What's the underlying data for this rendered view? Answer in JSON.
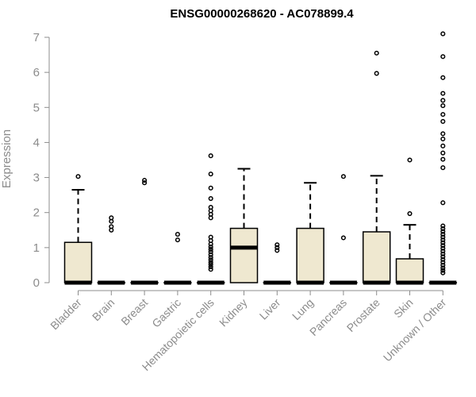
{
  "chart_data": {
    "type": "boxplot",
    "title": "ENSG00000268620 - AC078899.4",
    "xlabel": "",
    "ylabel": "Expression",
    "ylim": [
      0,
      7
    ],
    "yticks": [
      0,
      1,
      2,
      3,
      4,
      5,
      6,
      7
    ],
    "box_color": "#efe8d0",
    "categories": [
      "Bladder",
      "Brain",
      "Breast",
      "Gastric",
      "Hematopoietic cells",
      "Kidney",
      "Liver",
      "Lung",
      "Pancreas",
      "Prostate",
      "Skin",
      "Unknown / Other"
    ],
    "boxes": [
      {
        "q1": 0,
        "median": 0,
        "q3": 1.15,
        "whisker_low": 0,
        "whisker_high": 2.65,
        "outliers": [
          3.03
        ]
      },
      {
        "q1": 0,
        "median": 0,
        "q3": 0,
        "whisker_low": 0,
        "whisker_high": 0,
        "outliers": [
          1.5,
          1.6,
          1.75,
          1.85
        ]
      },
      {
        "q1": 0,
        "median": 0,
        "q3": 0,
        "whisker_low": 0,
        "whisker_high": 0,
        "outliers": [
          2.85,
          2.92
        ]
      },
      {
        "q1": 0,
        "median": 0,
        "q3": 0,
        "whisker_low": 0,
        "whisker_high": 0,
        "outliers": [
          1.22,
          1.38
        ]
      },
      {
        "q1": 0,
        "median": 0,
        "q3": 0,
        "whisker_low": 0,
        "whisker_high": 0,
        "outliers": [
          0.38,
          0.45,
          0.52,
          0.58,
          0.65,
          0.72,
          0.8,
          0.88,
          0.95,
          1.02,
          1.1,
          1.2,
          1.3,
          1.85,
          1.95,
          2.05,
          2.15,
          2.4,
          2.7,
          3.1,
          3.62
        ]
      },
      {
        "q1": 0,
        "median": 1.0,
        "q3": 1.55,
        "whisker_low": 0,
        "whisker_high": 3.25,
        "outliers": []
      },
      {
        "q1": 0,
        "median": 0,
        "q3": 0,
        "whisker_low": 0,
        "whisker_high": 0,
        "outliers": [
          0.92,
          1.0,
          1.08
        ]
      },
      {
        "q1": 0,
        "median": 0,
        "q3": 1.55,
        "whisker_low": 0,
        "whisker_high": 2.85,
        "outliers": []
      },
      {
        "q1": 0,
        "median": 0,
        "q3": 0,
        "whisker_low": 0,
        "whisker_high": 0,
        "outliers": [
          1.28,
          3.03
        ]
      },
      {
        "q1": 0,
        "median": 0,
        "q3": 1.45,
        "whisker_low": 0,
        "whisker_high": 3.05,
        "outliers": [
          5.97,
          6.55
        ]
      },
      {
        "q1": 0,
        "median": 0,
        "q3": 0.68,
        "whisker_low": 0,
        "whisker_high": 1.65,
        "outliers": [
          1.97,
          3.5
        ]
      },
      {
        "q1": 0,
        "median": 0,
        "q3": 0,
        "whisker_low": 0,
        "whisker_high": 0,
        "outliers": [
          0.28,
          0.35,
          0.42,
          0.5,
          0.58,
          0.66,
          0.74,
          0.82,
          0.9,
          0.98,
          1.06,
          1.14,
          1.22,
          1.3,
          1.38,
          1.46,
          1.54,
          1.62,
          2.28,
          3.28,
          3.52,
          3.7,
          3.9,
          4.1,
          4.25,
          4.6,
          4.8,
          5.05,
          5.2,
          5.4,
          5.85,
          6.45,
          7.1
        ]
      }
    ]
  }
}
